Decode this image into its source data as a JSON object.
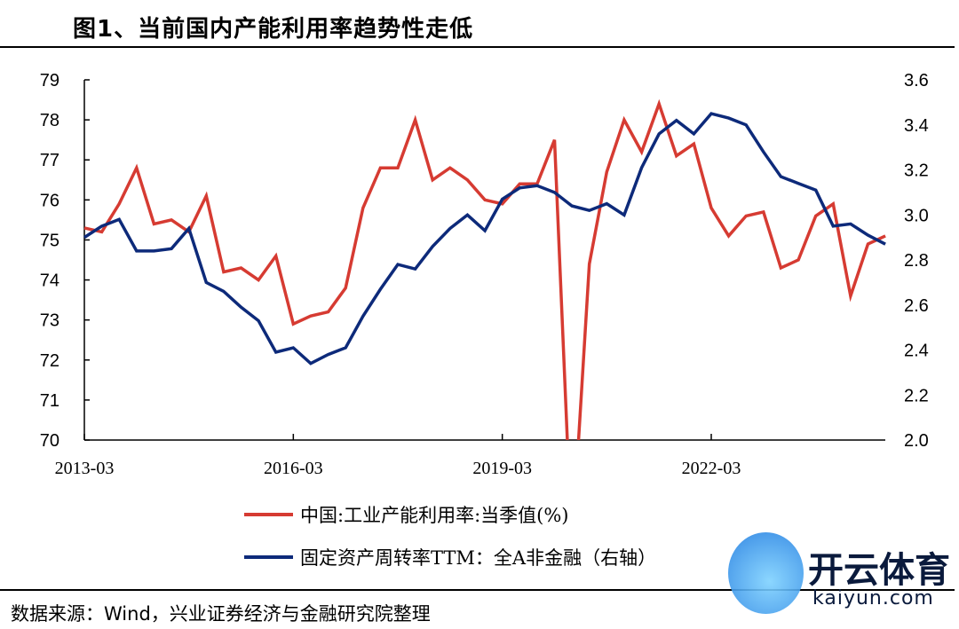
{
  "title": "图1、当前国内产能利用率趋势性走低",
  "source": "数据来源：Wind，兴业证券经济与金融研究院整理",
  "watermark": {
    "cn": "开云体育",
    "en": "kaiyun.com"
  },
  "chart_data": {
    "type": "line",
    "x_tick_labels": [
      "2013-03",
      "2016-03",
      "2019-03",
      "2022-03"
    ],
    "x_start": "2013-03",
    "x_frequency": "quarterly",
    "y_left": {
      "lim": [
        70,
        79
      ],
      "ticks": [
        "70",
        "71",
        "72",
        "73",
        "74",
        "75",
        "76",
        "77",
        "78",
        "79"
      ]
    },
    "y_right": {
      "lim": [
        2.0,
        3.6
      ],
      "ticks": [
        "2.0",
        "2.2",
        "2.4",
        "2.6",
        "2.8",
        "3.0",
        "3.2",
        "3.4",
        "3.6"
      ]
    },
    "grid": false,
    "legend_placement": "bottom",
    "series": [
      {
        "name": "中国:工业产能利用率:当季值(%)",
        "axis": "left",
        "color": "#d63b32",
        "values": [
          75.3,
          75.2,
          75.9,
          76.8,
          75.4,
          75.5,
          75.2,
          76.1,
          74.2,
          74.3,
          74.0,
          74.6,
          72.9,
          73.1,
          73.2,
          73.8,
          75.8,
          76.8,
          76.8,
          78.0,
          76.5,
          76.8,
          76.5,
          76.0,
          75.9,
          76.4,
          76.4,
          77.5,
          67.3,
          74.4,
          76.7,
          78.0,
          77.2,
          78.4,
          77.1,
          77.4,
          75.8,
          75.1,
          75.6,
          75.7,
          74.3,
          74.5,
          75.6,
          75.9,
          73.6,
          74.9,
          75.1
        ]
      },
      {
        "name": "固定资产周转率TTM：全A非金融（右轴）",
        "axis": "right",
        "color": "#0d2a7a",
        "values": [
          2.9,
          2.95,
          2.98,
          2.84,
          2.84,
          2.85,
          2.94,
          2.7,
          2.66,
          2.59,
          2.53,
          2.39,
          2.41,
          2.34,
          2.38,
          2.41,
          2.55,
          2.67,
          2.78,
          2.76,
          2.86,
          2.94,
          3.0,
          2.93,
          3.07,
          3.12,
          3.13,
          3.1,
          3.04,
          3.02,
          3.05,
          3.0,
          3.21,
          3.36,
          3.42,
          3.36,
          3.45,
          3.43,
          3.4,
          3.28,
          3.17,
          3.14,
          3.11,
          2.95,
          2.96,
          2.91,
          2.87
        ]
      }
    ]
  }
}
